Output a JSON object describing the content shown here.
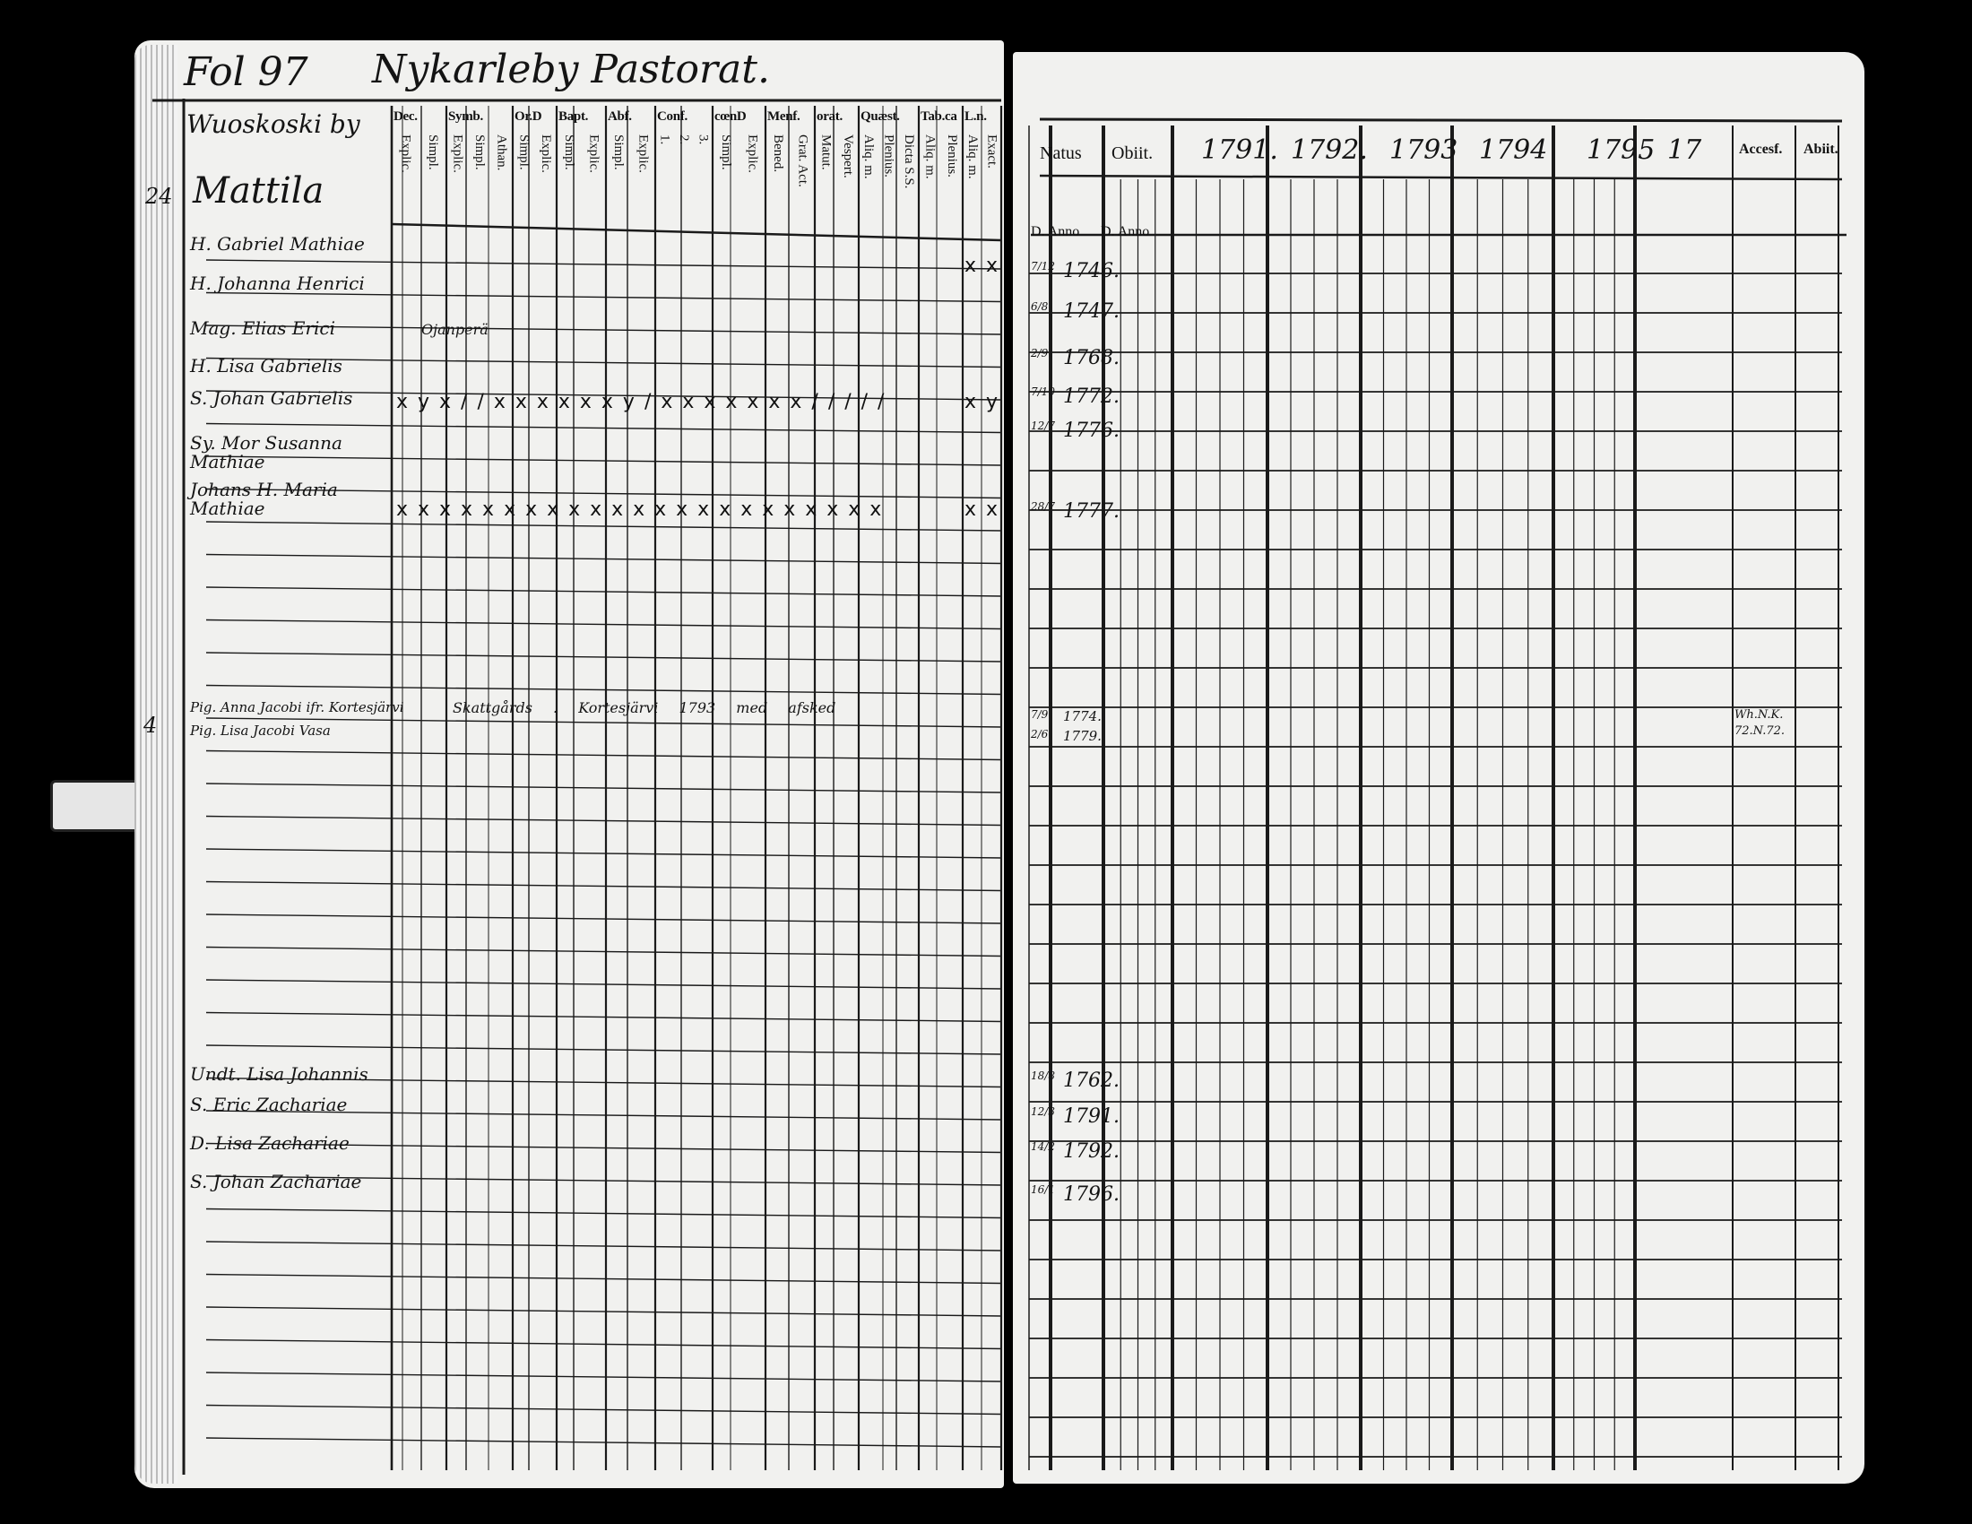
{
  "left_page": {
    "folio": "Fol 97",
    "parish": "Nykarleby Pastorat.",
    "village": "Wuoskoski by",
    "farm": "Mattila",
    "household_number": "24",
    "household_number_2": "4",
    "columns": [
      {
        "label": "Dec.",
        "sub": [
          "Explic.",
          "Simpl."
        ]
      },
      {
        "label": "Symb.",
        "sub": [
          "Explic.",
          "Simpl.",
          "Athan."
        ]
      },
      {
        "label": "Or.D",
        "sub": [
          "Simpl.",
          "Explic."
        ]
      },
      {
        "label": "Bapt.",
        "sub": [
          "Simpl.",
          "Explic."
        ]
      },
      {
        "label": "Abf.",
        "sub": [
          "Simpl.",
          "Explic."
        ]
      },
      {
        "label": "Conf.",
        "sub": [
          "1.",
          "2.",
          "3."
        ]
      },
      {
        "label": "cœnD",
        "sub": [
          "Simpl.",
          "Explic."
        ]
      },
      {
        "label": "Menf.",
        "sub": [
          "Bened.",
          "Grat. Act."
        ]
      },
      {
        "label": "orat.",
        "sub": [
          "Matut.",
          "Vespert."
        ]
      },
      {
        "label": "Quæst.",
        "sub": [
          "Aliq. m.",
          "Plenius.",
          "Dicta S.S."
        ]
      },
      {
        "label": "Tab.ca",
        "sub": [
          "Aliq. m.",
          "Plenius."
        ]
      },
      {
        "label": "L.n.",
        "sub": [
          "Aliq. m.",
          "Exact."
        ]
      }
    ],
    "persons": [
      {
        "name": "H. Gabriel Mathiae",
        "marks": "",
        "end_marks": "x x"
      },
      {
        "name": "H. Johanna Henrici",
        "marks": "",
        "end_marks": ""
      },
      {
        "name": "Mag. Elias Erici",
        "marks": "Ojanperä",
        "end_marks": ""
      },
      {
        "name": "H. Lisa Gabrielis",
        "marks": "",
        "end_marks": ""
      },
      {
        "name": "S. Johan Gabrielis",
        "marks": "x y x / / x x x x x x y / x x x x x x x / / / / /",
        "end_marks": "x y"
      },
      {
        "name": "Sy. Mor Susanna Mathiae",
        "marks": "",
        "end_marks": ""
      },
      {
        "name": "Johans H. Maria Mathiae",
        "marks": "x x x x x x x x x x x x x x x x x x x x x x x",
        "end_marks": "x x"
      },
      {
        "name": "Pig. Anna Jacobi ifr. Kortesjärvi",
        "marks": "Skattgårds . Kortesjärvi 1793 med afsked",
        "end_marks": ""
      },
      {
        "name": "Pig. Lisa Jacobi Vasa",
        "marks": "",
        "end_marks": ""
      },
      {
        "name": "Undt. Lisa Johannis",
        "marks": "",
        "end_marks": ""
      },
      {
        "name": "S. Eric Zachariae",
        "marks": "",
        "end_marks": ""
      },
      {
        "name": "D. Lisa Zachariae",
        "marks": "",
        "end_marks": ""
      },
      {
        "name": "S. Johan Zachariae",
        "marks": "",
        "end_marks": ""
      }
    ]
  },
  "right_page": {
    "headers": {
      "natus": "Natus",
      "obiit": "Obiit.",
      "years": [
        "1791.",
        "1792.",
        "1793",
        "1794",
        "1795",
        "17"
      ],
      "accessit": "Accesf.",
      "abiit": "Abiit."
    },
    "subheaders": {
      "natus": "D. Anno",
      "obiit": "D. Anno"
    },
    "births": [
      {
        "day": "7/12",
        "year": "1746."
      },
      {
        "day": "6/8",
        "year": "1747."
      },
      {
        "day": "2/9",
        "year": "1768."
      },
      {
        "day": "7/10",
        "year": "1772."
      },
      {
        "day": "12/7",
        "year": "1776."
      },
      {
        "day": "28/7",
        "year": "1777."
      },
      {
        "day": "7/9",
        "year": "1774."
      },
      {
        "day": "2/6",
        "year": "1779."
      },
      {
        "day": "18/8",
        "year": "1762."
      },
      {
        "day": "12/3",
        "year": "1791."
      },
      {
        "day": "14/2",
        "year": "1792."
      },
      {
        "day": "16/1",
        "year": "1796."
      }
    ],
    "notes": {
      "accessit_1": "Wh.N.K.",
      "accessit_2": "72.N.72."
    }
  }
}
